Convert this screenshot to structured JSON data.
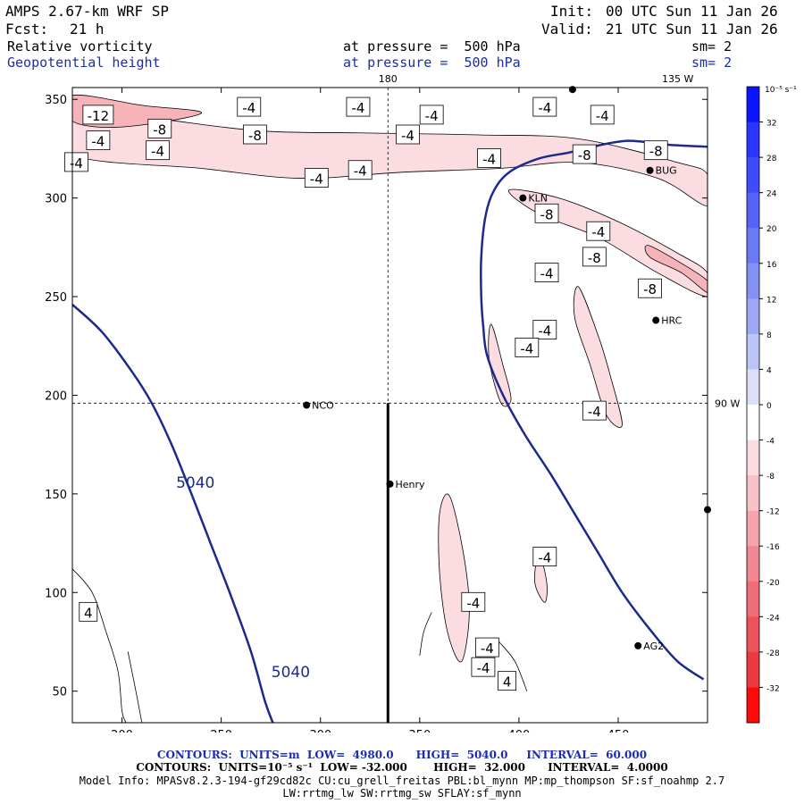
{
  "header": {
    "title": "AMPS 2.67-km WRF SP",
    "forecast_label": "Fcst:",
    "forecast_hours": "21 h",
    "init_label": "Init:",
    "init_time": "00 UTC Sun 11 Jan 26",
    "valid_label": "Valid:",
    "valid_time": "21 UTC Sun 11 Jan 26",
    "field1": "Relative vorticity",
    "field1_pressure": "at pressure =  500 hPa",
    "field1_sm": "sm= 2",
    "field2": "Geopotential height",
    "field2_pressure": "at pressure =  500 hPa",
    "field2_sm": "sm= 2"
  },
  "footer": {
    "contours1": "CONTOURS:  UNITS=m  LOW=  4980.0      HIGH=  5040.0     INTERVAL=  60.000",
    "contours2": "CONTOURS:  UNITS=10⁻⁵ s⁻¹  LOW= -32.000       HIGH=  32.000      INTERVAL=  4.0000",
    "model_info": "Model Info: MPASv8.2.3-194-gf29cd82c CU:cu_grell_freitas PBL:bl_mynn MP:mp_thompson SF:sf_noahmp 2.7",
    "model_info2": "LW:rrtmg_lw SW:rrtmg_sw SFLAY:sf_mynn"
  },
  "colors": {
    "geopotential": "#1c2a8c",
    "frame": "#000000"
  },
  "chart_data": {
    "type": "contour-map",
    "xlim": [
      175,
      495
    ],
    "ylim": [
      34,
      356
    ],
    "x_ticks": [
      200,
      250,
      300,
      350,
      400,
      450
    ],
    "y_ticks": [
      50,
      100,
      150,
      200,
      250,
      300,
      350
    ],
    "meridian_labels": [
      {
        "label": "180",
        "x": 334,
        "y": 356
      },
      {
        "label": "135 W",
        "x": 480,
        "y": 356
      },
      {
        "label": "90 W",
        "x": 495,
        "y": 196
      }
    ],
    "reference_lines": {
      "vertical_x": 334,
      "horizontal_y": 196
    },
    "vertical_bar": {
      "x": 334,
      "y_from": 34,
      "y_to": 196
    },
    "stations": [
      {
        "name": "NCO",
        "x": 293,
        "y": 195
      },
      {
        "name": "Henry",
        "x": 335,
        "y": 155
      },
      {
        "name": "KLN",
        "x": 402,
        "y": 300
      },
      {
        "name": "BUG",
        "x": 466,
        "y": 314
      },
      {
        "name": "HRC",
        "x": 469,
        "y": 238
      },
      {
        "name": "AG2",
        "x": 460,
        "y": 73
      },
      {
        "name": "",
        "x": 427,
        "y": 355
      },
      {
        "name": "",
        "x": 495,
        "y": 142
      }
    ],
    "geopotential_lines": [
      {
        "label": "5040",
        "points": [
          [
            175,
            246
          ],
          [
            190,
            232
          ],
          [
            205,
            212
          ],
          [
            215,
            196
          ],
          [
            225,
            175
          ],
          [
            235,
            150
          ],
          [
            245,
            124
          ],
          [
            255,
            98
          ],
          [
            265,
            70
          ],
          [
            272,
            45
          ],
          [
            276,
            34
          ]
        ]
      },
      {
        "label": "",
        "points": [
          [
            495,
            326
          ],
          [
            475,
            327
          ],
          [
            455,
            329
          ],
          [
            437,
            326
          ],
          [
            425,
            323
          ],
          [
            410,
            320
          ],
          [
            395,
            313
          ],
          [
            387,
            303
          ],
          [
            383,
            290
          ],
          [
            381,
            270
          ],
          [
            381,
            250
          ],
          [
            382,
            235
          ],
          [
            384,
            220
          ],
          [
            392,
            200
          ],
          [
            403,
            180
          ],
          [
            416,
            160
          ],
          [
            428,
            140
          ],
          [
            440,
            120
          ],
          [
            452,
            100
          ],
          [
            467,
            80
          ],
          [
            480,
            65
          ],
          [
            493,
            56
          ]
        ]
      }
    ],
    "geopotential_labels": [
      {
        "text": "5040",
        "x": 237,
        "y": 153
      },
      {
        "text": "5040",
        "x": 285,
        "y": 57
      }
    ],
    "vorticity_bands": [
      {
        "level": -4,
        "points": [
          [
            175,
            346
          ],
          [
            220,
            340
          ],
          [
            270,
            334
          ],
          [
            320,
            333
          ],
          [
            380,
            332
          ],
          [
            430,
            330
          ],
          [
            480,
            318
          ],
          [
            495,
            312
          ],
          [
            495,
            296
          ],
          [
            470,
            310
          ],
          [
            430,
            318
          ],
          [
            390,
            315
          ],
          [
            340,
            313
          ],
          [
            290,
            310
          ],
          [
            240,
            315
          ],
          [
            175,
            322
          ]
        ]
      },
      {
        "level": -4,
        "points": [
          [
            395,
            304
          ],
          [
            420,
            300
          ],
          [
            450,
            288
          ],
          [
            480,
            272
          ],
          [
            495,
            262
          ],
          [
            495,
            250
          ],
          [
            470,
            262
          ],
          [
            440,
            280
          ],
          [
            410,
            292
          ]
        ]
      },
      {
        "level": -8,
        "points": [
          [
            175,
            352
          ],
          [
            210,
            347
          ],
          [
            240,
            343
          ],
          [
            200,
            336
          ],
          [
            175,
            339
          ]
        ]
      },
      {
        "level": -8,
        "points": [
          [
            465,
            276
          ],
          [
            480,
            268
          ],
          [
            495,
            258
          ],
          [
            495,
            252
          ],
          [
            482,
            262
          ],
          [
            466,
            270
          ]
        ]
      },
      {
        "level": -4,
        "points": [
          [
            365,
            149
          ],
          [
            372,
            120
          ],
          [
            375,
            90
          ],
          [
            371,
            65
          ],
          [
            364,
            80
          ],
          [
            360,
            110
          ],
          [
            360,
            140
          ]
        ]
      },
      {
        "level": -4,
        "points": [
          [
            386,
            236
          ],
          [
            392,
            215
          ],
          [
            396,
            198
          ],
          [
            391,
            196
          ],
          [
            385,
            218
          ]
        ]
      },
      {
        "level": -4,
        "points": [
          [
            430,
            255
          ],
          [
            440,
            230
          ],
          [
            446,
            210
          ],
          [
            452,
            185
          ],
          [
            444,
            190
          ],
          [
            436,
            215
          ],
          [
            428,
            240
          ]
        ]
      },
      {
        "level": -4,
        "points": [
          [
            410,
            120
          ],
          [
            414,
            105
          ],
          [
            413,
            95
          ],
          [
            408,
            105
          ]
        ]
      }
    ],
    "vorticity_labels": [
      {
        "text": "-12",
        "x": 188,
        "y": 342
      },
      {
        "text": "-4",
        "x": 264,
        "y": 346
      },
      {
        "text": "-4",
        "x": 319,
        "y": 346
      },
      {
        "text": "-4",
        "x": 356,
        "y": 342
      },
      {
        "text": "-4",
        "x": 413,
        "y": 346
      },
      {
        "text": "-4",
        "x": 442,
        "y": 342
      },
      {
        "text": "-8",
        "x": 219,
        "y": 335
      },
      {
        "text": "-8",
        "x": 267,
        "y": 332
      },
      {
        "text": "-4",
        "x": 188,
        "y": 329
      },
      {
        "text": "-4",
        "x": 218,
        "y": 324
      },
      {
        "text": "-4",
        "x": 177,
        "y": 318
      },
      {
        "text": "-4",
        "x": 344,
        "y": 332
      },
      {
        "text": "-4",
        "x": 298,
        "y": 310
      },
      {
        "text": "-4",
        "x": 320,
        "y": 314
      },
      {
        "text": "-4",
        "x": 385,
        "y": 320
      },
      {
        "text": "-8",
        "x": 469,
        "y": 324
      },
      {
        "text": "-8",
        "x": 433,
        "y": 322
      },
      {
        "text": "-8",
        "x": 414,
        "y": 292
      },
      {
        "text": "-4",
        "x": 440,
        "y": 283
      },
      {
        "text": "-8",
        "x": 438,
        "y": 270
      },
      {
        "text": "-8",
        "x": 466,
        "y": 254
      },
      {
        "text": "-4",
        "x": 414,
        "y": 262
      },
      {
        "text": "-4",
        "x": 413,
        "y": 233
      },
      {
        "text": "-4",
        "x": 404,
        "y": 224
      },
      {
        "text": "-4",
        "x": 438,
        "y": 192
      },
      {
        "text": "4",
        "x": 183,
        "y": 90
      },
      {
        "text": "-4",
        "x": 413,
        "y": 118
      },
      {
        "text": "-4",
        "x": 377,
        "y": 95
      },
      {
        "text": "-4",
        "x": 384,
        "y": 72
      },
      {
        "text": "-4",
        "x": 382,
        "y": 62
      },
      {
        "text": "4",
        "x": 394,
        "y": 55
      }
    ],
    "thin_contours": [
      [
        [
          175,
          112
        ],
        [
          185,
          100
        ],
        [
          192,
          80
        ],
        [
          198,
          60
        ],
        [
          200,
          40
        ],
        [
          202,
          34
        ]
      ],
      [
        [
          210,
          34
        ],
        [
          207,
          50
        ],
        [
          203,
          70
        ]
      ],
      [
        [
          350,
          68
        ],
        [
          352,
          80
        ],
        [
          356,
          90
        ]
      ],
      [
        [
          390,
          75
        ],
        [
          398,
          65
        ],
        [
          404,
          50
        ]
      ]
    ],
    "colorbar": {
      "units": "10⁻⁵ s⁻¹",
      "ticks": [
        32,
        28,
        24,
        20,
        16,
        12,
        8,
        4,
        0,
        -4,
        -8,
        -12,
        -16,
        -20,
        -24,
        -28,
        -32
      ],
      "colors": [
        "#0a14ff",
        "#2a35ff",
        "#3f4cfb",
        "#5563f6",
        "#6a7af4",
        "#8391f3",
        "#9ea9f4",
        "#bcc3f6",
        "#dcdffa",
        "#ffffff",
        "#fbdde1",
        "#f8c2c9",
        "#f5a4ad",
        "#f18891",
        "#ef6d76",
        "#ec525b",
        "#ea3941",
        "#ff0a0a"
      ]
    }
  }
}
